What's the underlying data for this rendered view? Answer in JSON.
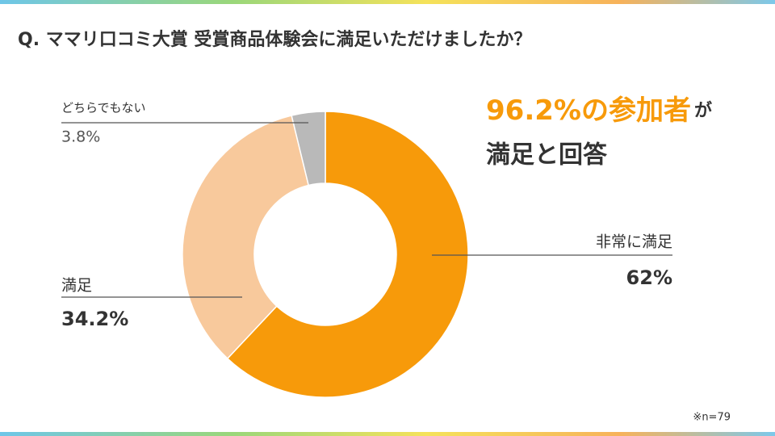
{
  "chart_data": {
    "type": "pie",
    "title": "Q. ママリ口コミ大賞 受賞商品体験会に満足いただけましたか？",
    "categories": [
      "非常に満足",
      "満足",
      "どちらでもない"
    ],
    "values": [
      62,
      34.2,
      3.8
    ],
    "value_labels": [
      "62%",
      "34.2%",
      "3.8%"
    ],
    "colors": [
      "#f79a0a",
      "#f8c99c",
      "#b9b9b9"
    ],
    "donut": true,
    "annotations": {
      "highlight": "96.2%の参加者",
      "highlight_suffix": "が",
      "line2": "満足と回答"
    },
    "footnote": "※n=79"
  }
}
